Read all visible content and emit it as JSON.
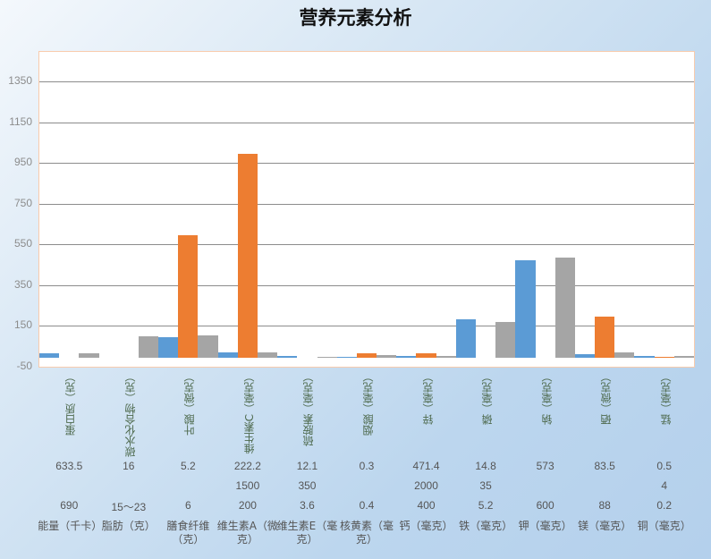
{
  "chart_data": {
    "type": "bar",
    "title": "营养元素分析",
    "categories": [
      "蛋白质（克）",
      "碳水化合物（克）",
      "叶酸（微克）",
      "维生素C（毫克）",
      "硫胺素（毫克）",
      "烟酸（毫克）",
      "锌（毫克）",
      "磷（毫克）",
      "钠（毫克）",
      "硒（微克）",
      "锰（毫克）"
    ],
    "series": [
      {
        "color": "#5B9BD5",
        "values": [
          20,
          0,
          100,
          25,
          5,
          1,
          5,
          185,
          475,
          15,
          5
        ]
      },
      {
        "color": "#ED7D31",
        "values": [
          0,
          0,
          600,
          1000,
          0,
          20,
          20,
          0,
          0,
          200,
          3
        ]
      },
      {
        "color": "#A5A5A5",
        "values": [
          20,
          103,
          108,
          25,
          1,
          10,
          5,
          175,
          490,
          25,
          5
        ]
      }
    ],
    "ylim": [
      -50,
      1350
    ],
    "yticks": [
      -50,
      150,
      350,
      550,
      750,
      950,
      1150,
      1350
    ],
    "grid": true,
    "legend": "none"
  },
  "table": {
    "rows": [
      [
        "633.5",
        "16",
        "5.2",
        "222.2",
        "12.1",
        "0.3",
        "471.4",
        "14.8",
        "573",
        "83.5",
        "0.5"
      ],
      [
        "",
        "",
        "",
        "1500",
        "350",
        "",
        "2000",
        "35",
        "",
        "",
        "4"
      ],
      [
        "690",
        "15～23",
        "6",
        "200",
        "3.6",
        "0.4",
        "400",
        "5.2",
        "600",
        "88",
        "0.2"
      ]
    ],
    "labels": [
      "能量（千卡）",
      "脂肪（克）",
      "膳食纤维（克）",
      "维生素A（微克）",
      "维生素E（毫克）",
      "核黄素（毫克）",
      "钙（毫克）",
      "铁（毫克）",
      "钾（毫克）",
      "镁（毫克）",
      "铜（毫克）"
    ]
  }
}
